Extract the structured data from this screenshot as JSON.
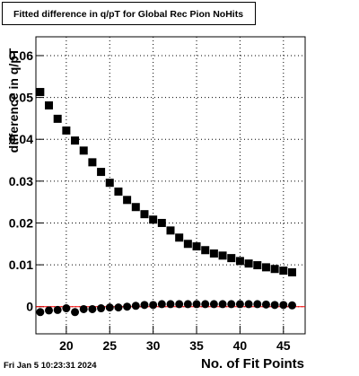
{
  "chart_data": {
    "type": "scatter",
    "title": "Fitted difference in q/pT for Global Rec Pion NoHits",
    "x_label": "No. of Fit Points",
    "y_label": "difference in q/pT",
    "footer": "Fri Jan  5 10:23:31 2024",
    "x": [
      17,
      18,
      19,
      20,
      21,
      22,
      23,
      24,
      25,
      26,
      27,
      28,
      29,
      30,
      31,
      32,
      33,
      34,
      35,
      36,
      37,
      38,
      39,
      40,
      41,
      42,
      43,
      44,
      45,
      46
    ],
    "series": [
      {
        "marker": "square",
        "color": "#000000",
        "values": [
          0.0513,
          0.0481,
          0.0449,
          0.0421,
          0.0397,
          0.0373,
          0.0345,
          0.0322,
          0.0296,
          0.0275,
          0.0255,
          0.0238,
          0.0221,
          0.0208,
          0.02,
          0.0182,
          0.0165,
          0.015,
          0.0144,
          0.0135,
          0.0127,
          0.0122,
          0.0116,
          0.0109,
          0.0103,
          0.0099,
          0.0094,
          0.009,
          0.0086,
          0.0082
        ]
      },
      {
        "marker": "circle",
        "color": "#000000",
        "values": [
          -0.0013,
          -0.0009,
          -0.0008,
          -0.0004,
          -0.0013,
          -0.0006,
          -0.0006,
          -0.0004,
          -0.0002,
          -0.0002,
          0,
          0.0002,
          0.0004,
          0.0004,
          0.0006,
          0.0006,
          0.0006,
          0.0006,
          0.0006,
          0.0006,
          0.0006,
          0.0006,
          0.0006,
          0.0006,
          0.0006,
          0.0006,
          0.0005,
          0.0004,
          0.0004,
          0.0003
        ]
      }
    ],
    "reference_line": {
      "value": 0,
      "color": "#ff0000"
    },
    "xlim": [
      16.5,
      47.5
    ],
    "xticks": [
      20,
      25,
      30,
      35,
      40,
      45
    ],
    "ylim": [
      -0.0065,
      0.0645
    ],
    "yticks": [
      0,
      0.01,
      0.02,
      0.03,
      0.04,
      0.05,
      0.06
    ],
    "grid": true
  }
}
